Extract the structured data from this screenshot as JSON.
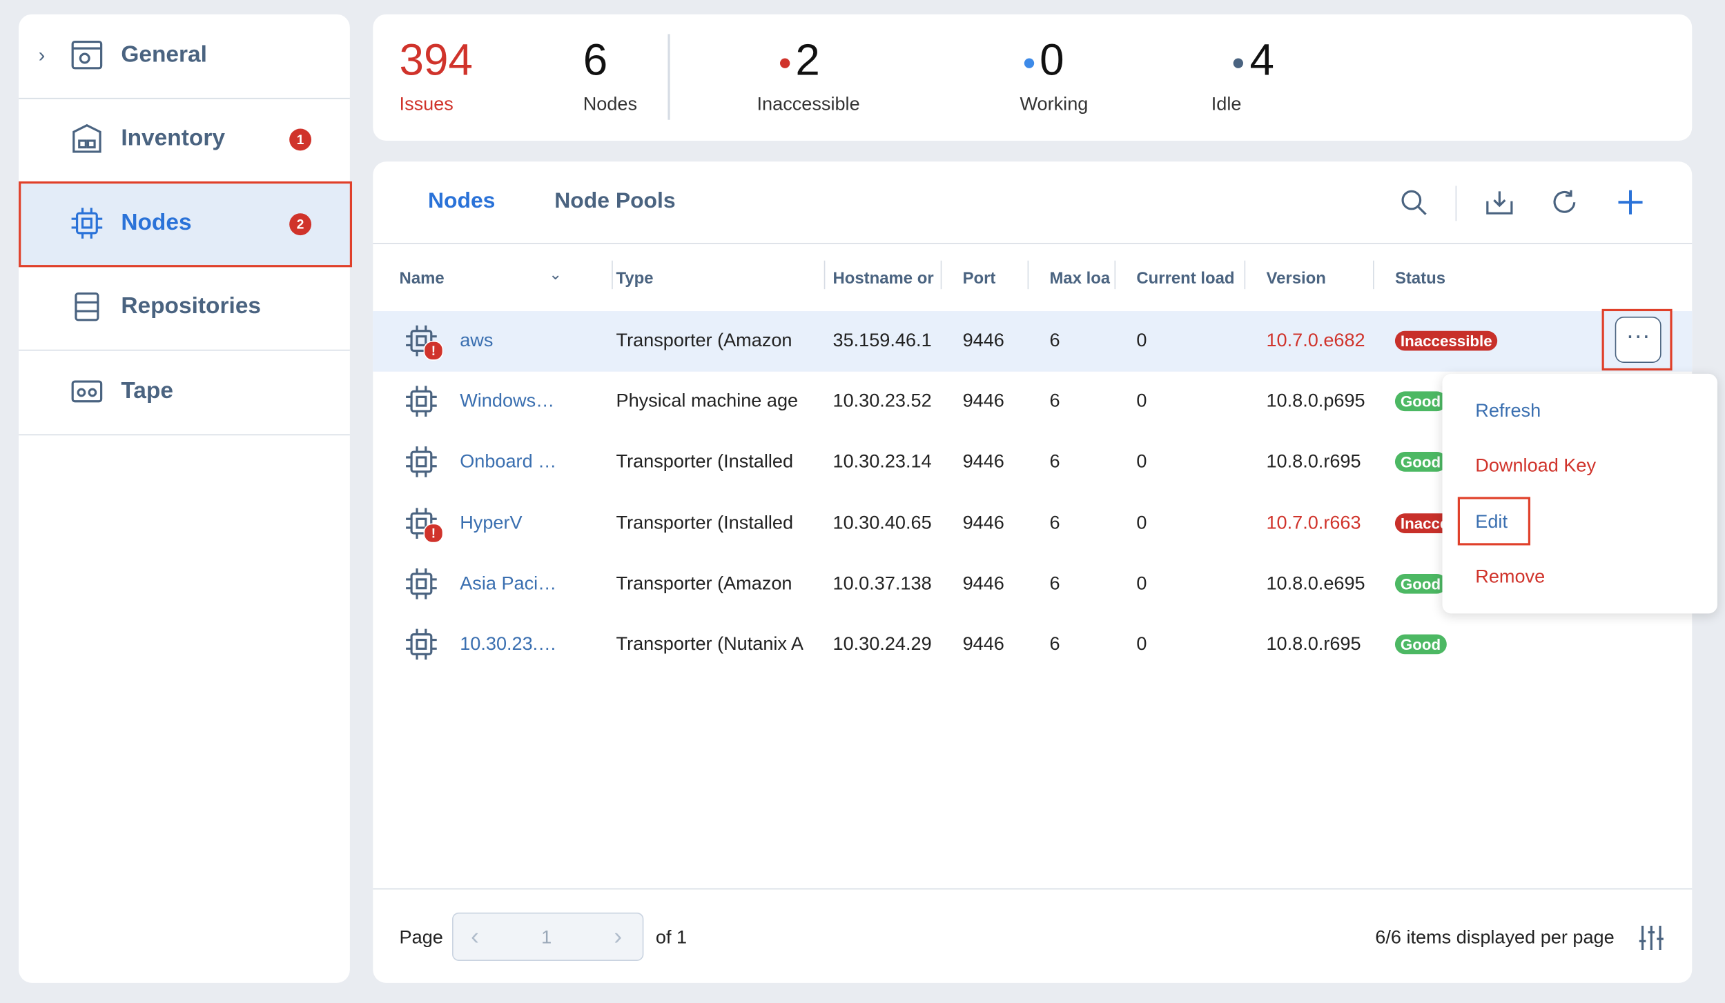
{
  "sidebar": [
    {
      "label": "General",
      "badge": null
    },
    {
      "label": "Inventory",
      "badge": "1"
    },
    {
      "label": "Nodes",
      "badge": "2"
    },
    {
      "label": "Repositories",
      "badge": null
    },
    {
      "label": "Tape",
      "badge": null
    }
  ],
  "summary": {
    "issues": {
      "value": 394,
      "label": "Issues"
    },
    "nodes": {
      "value": 6,
      "label": "Nodes"
    },
    "states": [
      {
        "value": 2,
        "label": "Inaccessible",
        "color": "#d0332b"
      },
      {
        "value": 0,
        "label": "Working",
        "color": "#3d8ae8"
      },
      {
        "value": 4,
        "label": "Idle",
        "color": "#4a6380"
      }
    ]
  },
  "tabs": [
    "Nodes",
    "Node Pools"
  ],
  "table": {
    "columns": [
      "Name",
      "Type",
      "Hostname or",
      "Port",
      "Max loa",
      "Current load",
      "Version",
      "Status"
    ],
    "rows": [
      {
        "name": "aws",
        "type": "Transporter (Amazon",
        "hostname": "35.159.46.1",
        "port": 9446,
        "max_load": 6,
        "current_load": 0,
        "version": "10.7.0.e682",
        "status": "Inaccessible",
        "alert": true
      },
      {
        "name": "Windows…",
        "type": "Physical machine age",
        "hostname": "10.30.23.52",
        "port": 9446,
        "max_load": 6,
        "current_load": 0,
        "version": "10.8.0.p695",
        "status": "Good",
        "alert": false
      },
      {
        "name": "Onboard …",
        "type": "Transporter (Installed",
        "hostname": "10.30.23.14",
        "port": 9446,
        "max_load": 6,
        "current_load": 0,
        "version": "10.8.0.r695",
        "status": "Good",
        "alert": false
      },
      {
        "name": "HyperV",
        "type": "Transporter (Installed",
        "hostname": "10.30.40.65",
        "port": 9446,
        "max_load": 6,
        "current_load": 0,
        "version": "10.7.0.r663",
        "status": "Inaccessible",
        "alert": true
      },
      {
        "name": "Asia Paci…",
        "type": "Transporter (Amazon",
        "hostname": "10.0.37.138",
        "port": 9446,
        "max_load": 6,
        "current_load": 0,
        "version": "10.8.0.e695",
        "status": "Good",
        "alert": false
      },
      {
        "name": "10.30.23.…",
        "type": "Transporter (Nutanix A",
        "hostname": "10.30.24.29",
        "port": 9446,
        "max_load": 6,
        "current_load": 0,
        "version": "10.8.0.r695",
        "status": "Good",
        "alert": false
      }
    ]
  },
  "menu": [
    "Refresh",
    "Download Key",
    "Edit",
    "Remove"
  ],
  "footer": {
    "page_label": "Page",
    "page": 1,
    "of": "of 1",
    "per_page": "6/6 items displayed per page"
  }
}
